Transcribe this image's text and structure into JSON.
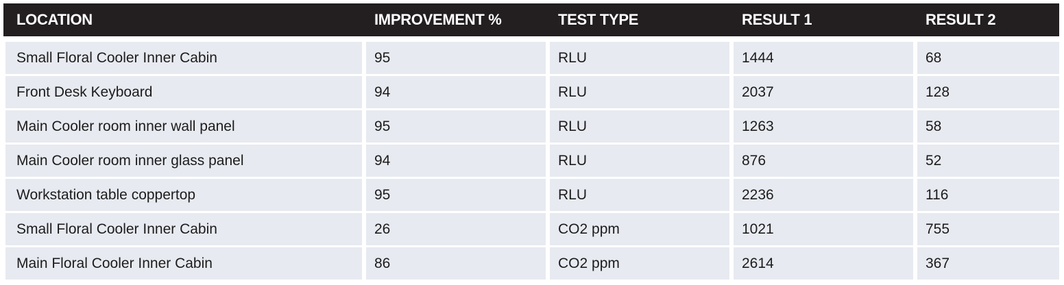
{
  "table": {
    "headers": [
      "LOCATION",
      "IMPROVEMENT %",
      "TEST TYPE",
      "RESULT 1",
      "RESULT 2"
    ],
    "rows": [
      [
        "Small Floral Cooler Inner Cabin",
        95,
        "RLU",
        1444,
        68
      ],
      [
        "Front Desk Keyboard",
        94,
        "RLU",
        2037,
        128
      ],
      [
        "Main Cooler room inner wall panel",
        95,
        "RLU",
        1263,
        58
      ],
      [
        "Main Cooler room inner glass panel",
        94,
        "RLU",
        876,
        52
      ],
      [
        "Workstation table coppertop",
        95,
        "RLU",
        2236,
        116
      ],
      [
        "Small Floral Cooler Inner Cabin",
        26,
        "CO2 ppm",
        1021,
        755
      ],
      [
        "Main Floral Cooler Inner Cabin",
        86,
        "CO2 ppm",
        2614,
        367
      ]
    ]
  }
}
